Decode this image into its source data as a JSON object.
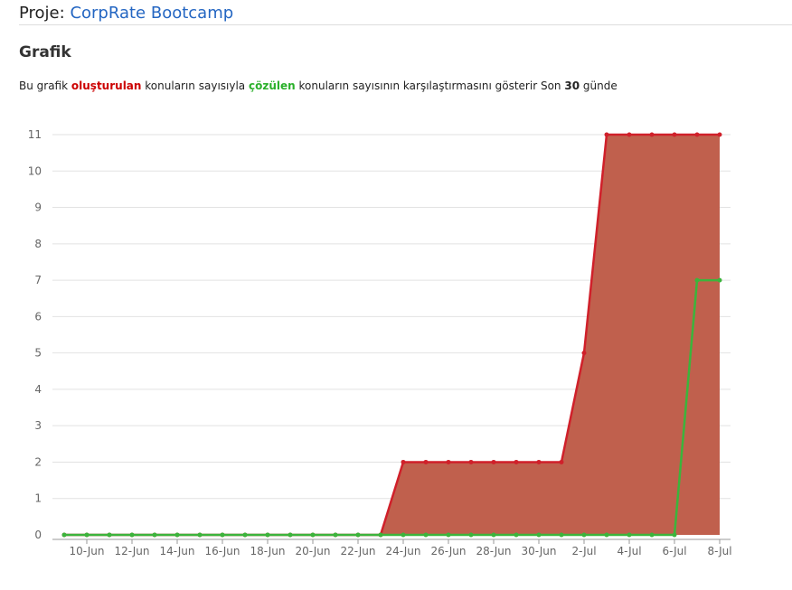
{
  "header": {
    "label": "Proje:",
    "project": "CorpRate Bootcamp"
  },
  "section": {
    "title": "Grafik",
    "description": {
      "p1": "Bu grafik",
      "created": "oluşturulan",
      "p2": "konuların sayısıyla",
      "resolved": "çözülen",
      "p3": "konuların sayısının karşılaştırmasını gösterir Son",
      "days": 30,
      "p4": "günde"
    }
  },
  "chart_data": {
    "type": "line",
    "area": true,
    "categories": [
      null,
      "10-Jun",
      null,
      "12-Jun",
      null,
      "14-Jun",
      null,
      "16-Jun",
      null,
      "18-Jun",
      null,
      "20-Jun",
      null,
      "22-Jun",
      null,
      "24-Jun",
      null,
      "26-Jun",
      null,
      "28-Jun",
      null,
      "30-Jun",
      null,
      "2-Jul",
      null,
      "4-Jul",
      null,
      "6-Jul",
      null,
      "8-Jul"
    ],
    "series": [
      {
        "color": "#d0202a",
        "fill": "#c0604d",
        "values": [
          0,
          0,
          0,
          0,
          0,
          0,
          0,
          0,
          0,
          0,
          0,
          0,
          0,
          0,
          0,
          2,
          2,
          2,
          2,
          2,
          2,
          2,
          2,
          5,
          11,
          11,
          11,
          11,
          11,
          11
        ]
      },
      {
        "color": "#3cb43c",
        "values": [
          0,
          0,
          0,
          0,
          0,
          0,
          0,
          0,
          0,
          0,
          0,
          0,
          0,
          0,
          0,
          0,
          0,
          0,
          0,
          0,
          0,
          0,
          0,
          0,
          0,
          0,
          0,
          0,
          7,
          7
        ]
      }
    ],
    "ylim": [
      0,
      11
    ],
    "yticks": [
      0,
      1,
      2,
      3,
      4,
      5,
      6,
      7,
      8,
      9,
      10,
      11
    ],
    "grid": true
  }
}
